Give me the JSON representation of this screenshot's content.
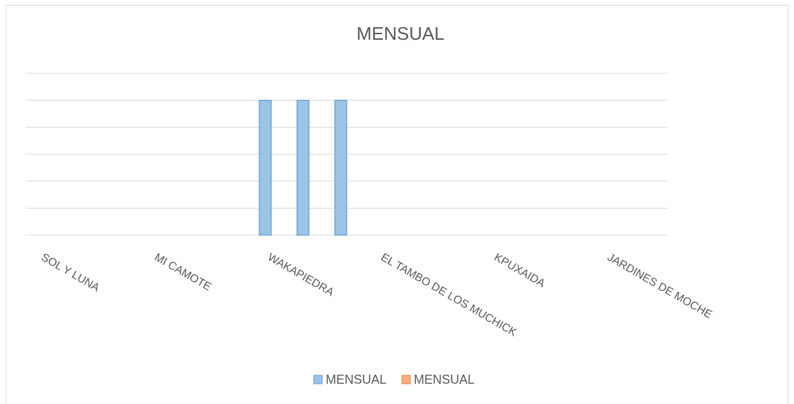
{
  "chart_data": {
    "type": "bar",
    "title": "MENSUAL",
    "categories": [
      "SOL Y LUNA",
      null,
      null,
      "MI CAMOTE",
      null,
      null,
      "WAKAPIEDRA",
      null,
      null,
      "EL TAMBO DE LOS MUCHICK",
      null,
      null,
      "KPUXAIDA",
      null,
      null,
      "JARDINES DE MOCHE",
      null
    ],
    "series": [
      {
        "name": "MENSUAL",
        "color": "#9dc3e6",
        "values": [
          null,
          null,
          null,
          null,
          null,
          null,
          5,
          5,
          5,
          null,
          null,
          null,
          null,
          null,
          null,
          null,
          null
        ]
      },
      {
        "name": "MENSUAL",
        "color": "#f4b183",
        "values": [
          null,
          null,
          null,
          null,
          null,
          null,
          null,
          null,
          null,
          null,
          null,
          null,
          null,
          null,
          null,
          null,
          null
        ]
      }
    ],
    "ylim": [
      0,
      6
    ],
    "yticks": [
      0,
      1,
      2,
      3,
      4,
      5,
      6
    ],
    "grid": true,
    "y_tick_labels": false,
    "legend": "bottom"
  }
}
